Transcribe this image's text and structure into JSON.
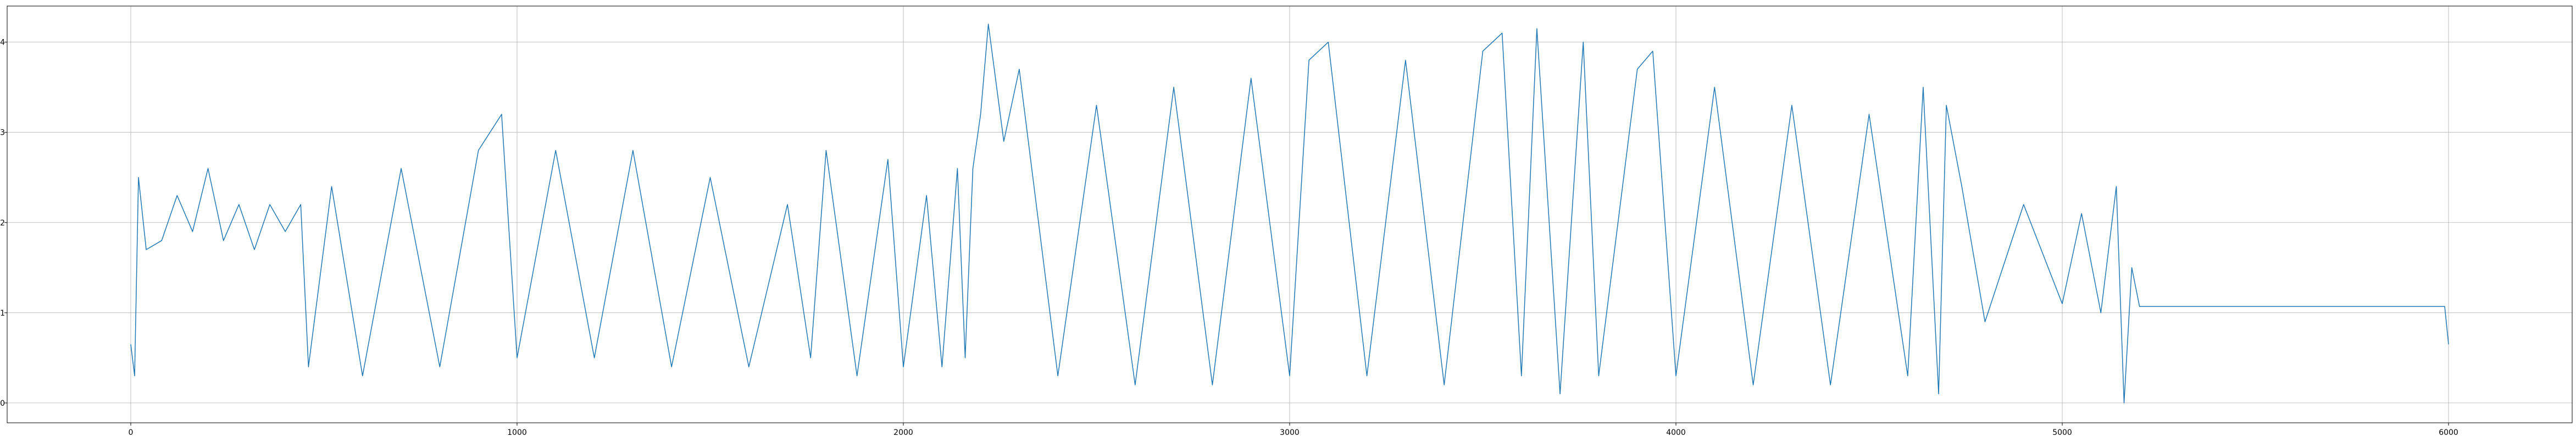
{
  "chart_data": {
    "type": "line",
    "title": "",
    "xlabel": "",
    "ylabel": "",
    "xlim": [
      -320,
      6320
    ],
    "ylim": [
      -0.22,
      4.4
    ],
    "grid": true,
    "line_color": "#1f77b4",
    "grid_color": "#b0b0b0",
    "x_ticks": [
      0,
      1000,
      2000,
      3000,
      4000,
      5000,
      6000
    ],
    "x_tick_labels": [
      "0",
      "1000",
      "2000",
      "3000",
      "4000",
      "5000",
      "6000"
    ],
    "y_ticks": [
      0,
      1,
      2,
      3,
      4
    ],
    "y_tick_labels": [
      "0",
      "1",
      "2",
      "3",
      "4"
    ],
    "series": [
      {
        "x": [
          0,
          10,
          20,
          40,
          80,
          120,
          160,
          200,
          240,
          280,
          320,
          360,
          400,
          440,
          460,
          520,
          600,
          700,
          800,
          900,
          960,
          1000,
          1100,
          1200,
          1300,
          1400,
          1500,
          1600,
          1700,
          1760,
          1800,
          1880,
          1960,
          2000,
          2060,
          2100,
          2140,
          2160,
          2180,
          2200,
          2220,
          2260,
          2300,
          2400,
          2500,
          2600,
          2700,
          2800,
          2900,
          3000,
          3050,
          3100,
          3200,
          3300,
          3400,
          3500,
          3550,
          3600,
          3640,
          3700,
          3760,
          3800,
          3900,
          3940,
          4000,
          4100,
          4200,
          4300,
          4400,
          4500,
          4600,
          4640,
          4680,
          4700,
          4740,
          4800,
          4900,
          5000,
          5050,
          5100,
          5140,
          5160,
          5180,
          5200,
          5400,
          5600,
          5800,
          5990,
          6000
        ],
        "y": [
          0.65,
          0.3,
          2.5,
          1.7,
          1.8,
          2.3,
          1.9,
          2.6,
          1.8,
          2.2,
          1.7,
          2.2,
          1.9,
          2.2,
          0.4,
          2.4,
          0.3,
          2.6,
          0.4,
          2.8,
          3.2,
          0.5,
          2.8,
          0.5,
          2.8,
          0.4,
          2.5,
          0.4,
          2.2,
          0.5,
          2.8,
          0.3,
          2.7,
          0.4,
          2.3,
          0.4,
          2.6,
          0.5,
          2.6,
          3.2,
          4.2,
          2.9,
          3.7,
          0.3,
          3.3,
          0.2,
          3.5,
          0.2,
          3.6,
          0.3,
          3.8,
          4.0,
          0.3,
          3.8,
          0.2,
          3.9,
          4.1,
          0.3,
          4.15,
          0.1,
          4.0,
          0.3,
          3.7,
          3.9,
          0.3,
          3.5,
          0.2,
          3.3,
          0.2,
          3.2,
          0.3,
          3.5,
          0.1,
          3.3,
          2.4,
          0.9,
          2.2,
          1.1,
          2.1,
          1.0,
          2.4,
          0.0,
          1.5,
          1.07,
          1.07,
          1.07,
          1.07,
          1.07,
          0.65
        ]
      }
    ]
  }
}
